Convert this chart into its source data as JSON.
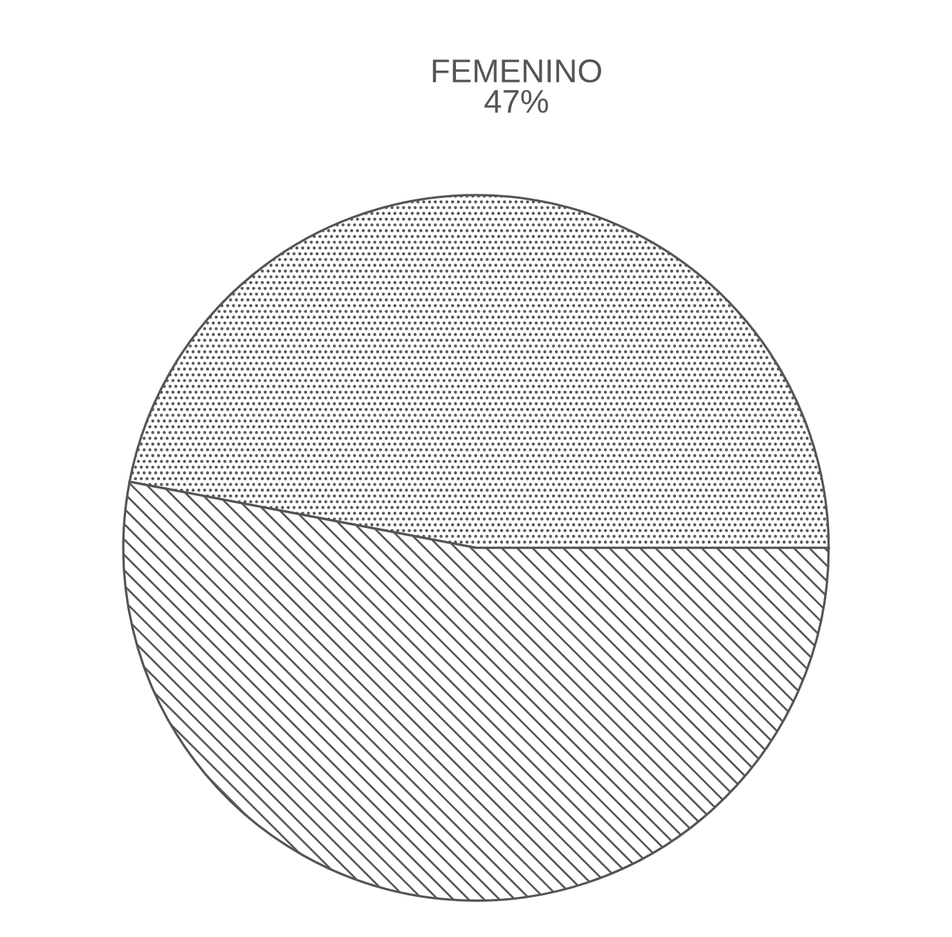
{
  "chart_data": {
    "type": "pie",
    "categories": [
      "FEMENINO",
      null
    ],
    "values": [
      47,
      53
    ],
    "value_labels": [
      "47%",
      null
    ],
    "colors": [
      "#555555",
      "#555555"
    ]
  }
}
